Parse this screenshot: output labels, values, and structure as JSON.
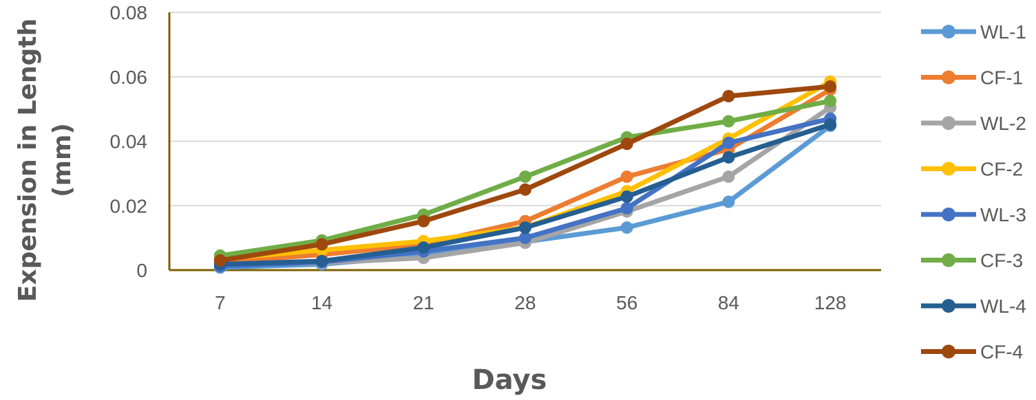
{
  "chart_data": {
    "type": "line",
    "title": "",
    "xlabel": "Days",
    "ylabel_lines": [
      "Expension in Length",
      "(mm)"
    ],
    "categories": [
      "7",
      "14",
      "21",
      "28",
      "56",
      "84",
      "128"
    ],
    "yticks": [
      "0",
      "0.02",
      "0.04",
      "0.06",
      "0.08"
    ],
    "ylim": [
      0,
      0.08
    ],
    "grid": true,
    "legend_position": "right",
    "series": [
      {
        "name": "WL-1",
        "color": "#5B9BD5",
        "values": [
          0.0008,
          0.0018,
          0.0045,
          0.0088,
          0.0132,
          0.0212,
          0.0448
        ]
      },
      {
        "name": "CF-1",
        "color": "#ED7D31",
        "values": [
          0.0025,
          0.0048,
          0.008,
          0.0152,
          0.029,
          0.0375,
          0.056
        ]
      },
      {
        "name": "WL-2",
        "color": "#A5A5A5",
        "values": [
          0.0018,
          0.0022,
          0.0038,
          0.0085,
          0.0182,
          0.029,
          0.0505
        ]
      },
      {
        "name": "CF-2",
        "color": "#FFC000",
        "values": [
          0.0035,
          0.0062,
          0.009,
          0.0132,
          0.0245,
          0.0408,
          0.0585
        ]
      },
      {
        "name": "WL-3",
        "color": "#4472C4",
        "values": [
          0.0012,
          0.0025,
          0.0058,
          0.01,
          0.0192,
          0.0395,
          0.047
        ]
      },
      {
        "name": "CF-3",
        "color": "#70AD47",
        "values": [
          0.0045,
          0.0092,
          0.0172,
          0.029,
          0.0412,
          0.0462,
          0.0525
        ]
      },
      {
        "name": "WL-4",
        "color": "#255E91",
        "values": [
          0.0018,
          0.0028,
          0.007,
          0.0132,
          0.0228,
          0.035,
          0.0452
        ]
      },
      {
        "name": "CF-4",
        "color": "#9E480E",
        "values": [
          0.003,
          0.008,
          0.0152,
          0.025,
          0.0392,
          0.054,
          0.057
        ]
      }
    ]
  }
}
